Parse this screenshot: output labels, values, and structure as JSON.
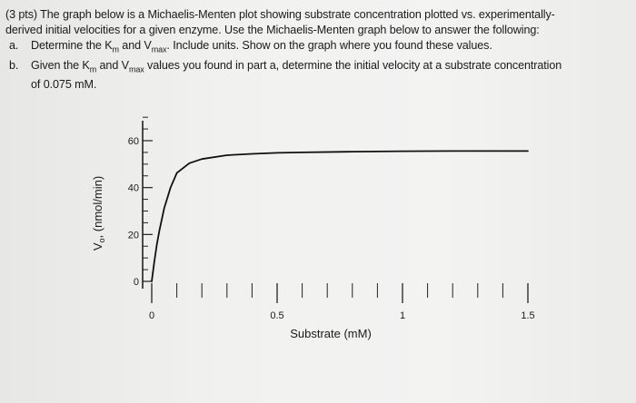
{
  "question": {
    "intro_1": "(3 pts) The graph below is a Michaelis-Menten plot showing substrate concentration plotted vs. experimentally-",
    "intro_2": "derived initial velocities for a given enzyme. Use the Michaelis-Menten graph below to answer the following:",
    "item_a": {
      "letter": "a.",
      "text_1": "Determine the K",
      "sub_1": "m",
      "text_2": " and V",
      "sub_2": "max",
      "text_3": ". Include units. Show on the graph where you found these values."
    },
    "item_b": {
      "letter": "b.",
      "text_1": "Given the K",
      "sub_1": "m",
      "text_2": " and V",
      "sub_2": "max",
      "text_3": " values you found in part a, determine the initial velocity at a substrate concentration",
      "line_2": "of 0.075 mM."
    }
  },
  "chart_data": {
    "type": "line",
    "title": "",
    "xlabel": "Substrate (mM)",
    "ylabel": "V0 (nmol/min)",
    "ylabel_parts": {
      "main": "V",
      "sub": "o",
      "rest": ", (nmol/min)"
    },
    "xlim": [
      0,
      1.5
    ],
    "ylim": [
      0,
      60
    ],
    "x_ticks": [
      0,
      0.5,
      1,
      1.5
    ],
    "x_tick_labels": [
      "0",
      "0.5",
      "1",
      "1.5"
    ],
    "y_ticks": [
      0,
      20,
      40,
      60
    ],
    "y_tick_labels": [
      "0",
      "20",
      "40",
      "60"
    ],
    "grid": false,
    "series": [
      {
        "x": [
          0,
          0.01,
          0.02,
          0.03,
          0.05,
          0.075,
          0.1,
          0.15,
          0.2,
          0.3,
          0.4,
          0.5,
          0.6,
          0.8,
          1.0,
          1.2,
          1.4,
          1.5
        ],
        "y": [
          0,
          8.3,
          15.4,
          21.4,
          31.3,
          40.0,
          46.2,
          50.4,
          52.2,
          53.8,
          54.4,
          54.8,
          55.0,
          55.3,
          55.5,
          55.6,
          55.6,
          55.6
        ]
      }
    ],
    "colors": {
      "line": "#111111",
      "axis": "#222222"
    }
  }
}
